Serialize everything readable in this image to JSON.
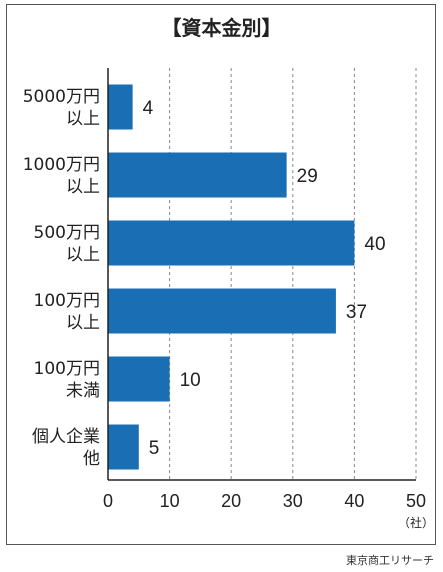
{
  "chart_data": {
    "type": "bar",
    "orientation": "horizontal",
    "title": "【資本金別】",
    "categories": [
      [
        "5000万円",
        "以上"
      ],
      [
        "1000万円",
        "以上"
      ],
      [
        "500万円",
        "以上"
      ],
      [
        "100万円",
        "以上"
      ],
      [
        "100万円",
        "未満"
      ],
      [
        "個人企業",
        "他"
      ]
    ],
    "values": [
      4,
      29,
      40,
      37,
      10,
      5
    ],
    "xlim": [
      0,
      50
    ],
    "xticks": [
      0,
      10,
      20,
      30,
      40,
      50
    ],
    "unit": "（社）",
    "grid": "vertical dashed",
    "bar_color": "#1a6fb4"
  },
  "source": "東京商工リサーチ"
}
